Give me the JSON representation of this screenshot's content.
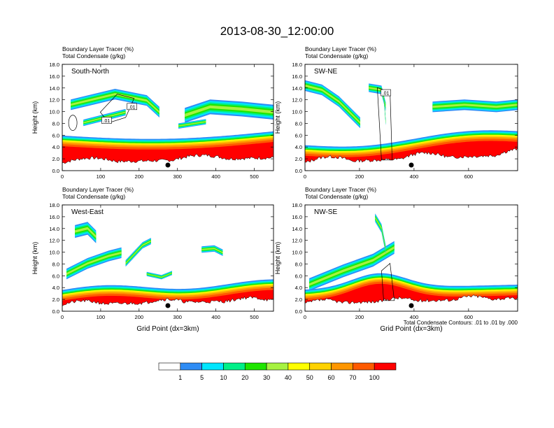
{
  "chart_data": {
    "type": "heatmap",
    "title": "2013-08-30_12:00:00",
    "colorbar": {
      "colors": [
        "#ffffff",
        "#2e8cf5",
        "#00e6ff",
        "#00f088",
        "#1ee600",
        "#a6f240",
        "#ffff00",
        "#ffd200",
        "#ff9600",
        "#ff5a00",
        "#ff0000"
      ],
      "tick_labels": [
        "1",
        "5",
        "10",
        "20",
        "30",
        "40",
        "50",
        "60",
        "70",
        "100"
      ]
    },
    "footnote": "Total Condensate Contours: .01 to .01 by .000",
    "panels": [
      {
        "id": "sn",
        "label": "South-North",
        "title_lines": [
          "Boundary Layer Tracer   (%)",
          "Total Condensate   (g/kg)"
        ],
        "ylabel": "Height (km)",
        "xlabel": "",
        "xlim": [
          0,
          550
        ],
        "xticks": [
          "0",
          "100",
          "200",
          "300",
          "400",
          "500"
        ],
        "xtick_values": [
          0,
          100,
          200,
          300,
          400,
          500
        ],
        "ylim": [
          0,
          18
        ],
        "yticks": [
          "0.0",
          "2.0",
          "4.0",
          "6.0",
          "8.0",
          "10.0",
          "12.0",
          "14.0",
          "16.0",
          "18.0"
        ],
        "marker_x": 275,
        "contour_labels": [
          ".01",
          ".01"
        ]
      },
      {
        "id": "swne",
        "label": "SW-NE",
        "title_lines": [
          "Boundary Layer Tracer   (%)",
          "Total Condensate   (g/kg)"
        ],
        "ylabel": "Height (km)",
        "xlabel": "",
        "xlim": [
          0,
          780
        ],
        "xticks": [
          "0",
          "200",
          "400",
          "600"
        ],
        "xtick_values": [
          0,
          200,
          400,
          600
        ],
        "ylim": [
          0,
          18
        ],
        "yticks": [
          "0.0",
          "2.0",
          "4.0",
          "6.0",
          "8.0",
          "10.0",
          "12.0",
          "14.0",
          "16.0",
          "18.0"
        ],
        "marker_x": 390,
        "contour_labels": [
          ".01"
        ]
      },
      {
        "id": "we",
        "label": "West-East",
        "title_lines": [
          "Boundary Layer Tracer   (%)",
          "Total Condensate   (g/kg)"
        ],
        "ylabel": "Height (km)",
        "xlabel": "Grid Point (dx=3km)",
        "xlim": [
          0,
          550
        ],
        "xticks": [
          "0",
          "100",
          "200",
          "300",
          "400",
          "500"
        ],
        "xtick_values": [
          0,
          100,
          200,
          300,
          400,
          500
        ],
        "ylim": [
          0,
          18
        ],
        "yticks": [
          "0.0",
          "2.0",
          "4.0",
          "6.0",
          "8.0",
          "10.0",
          "12.0",
          "14.0",
          "16.0",
          "18.0"
        ],
        "marker_x": 275,
        "contour_labels": []
      },
      {
        "id": "nwse",
        "label": "NW-SE",
        "title_lines": [
          "Boundary Layer Tracer   (%)",
          "Total Condensate   (g/kg)"
        ],
        "ylabel": "Height (km)",
        "xlabel": "Grid Point (dx=3km)",
        "xlim": [
          0,
          780
        ],
        "xticks": [
          "0",
          "200",
          "400",
          "600"
        ],
        "xtick_values": [
          0,
          200,
          400,
          600
        ],
        "ylim": [
          0,
          18
        ],
        "yticks": [
          "0.0",
          "2.0",
          "4.0",
          "6.0",
          "8.0",
          "10.0",
          "12.0",
          "14.0",
          "16.0",
          "18.0"
        ],
        "marker_x": 390,
        "contour_labels": []
      }
    ]
  }
}
